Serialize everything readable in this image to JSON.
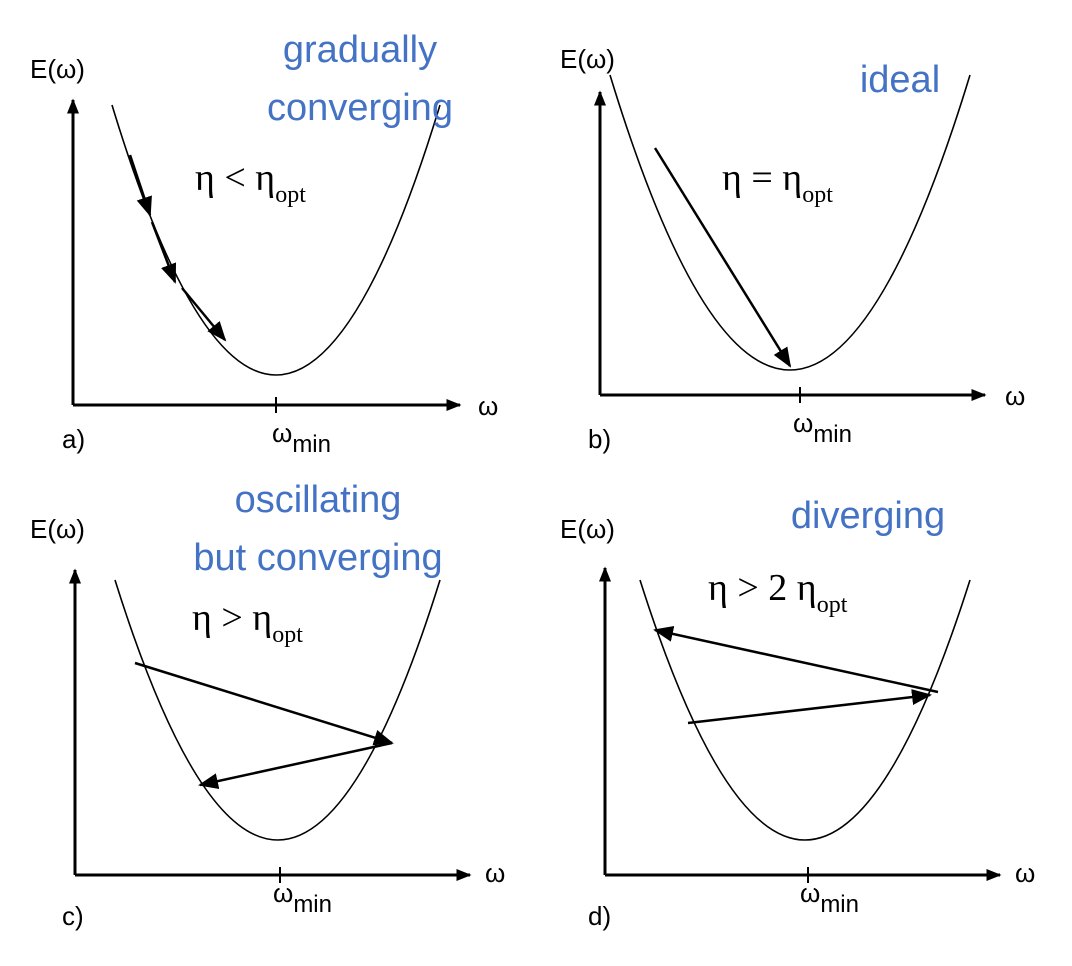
{
  "panels": [
    {
      "label": "a)",
      "y_axis": "E(ω)",
      "x_axis": "ω",
      "min_label": "ω",
      "min_sub": "min",
      "eta": "η < η",
      "eta_sub": "opt",
      "caption": [
        "gradually",
        "converging"
      ]
    },
    {
      "label": "b)",
      "y_axis": "E(ω)",
      "x_axis": "ω",
      "min_label": "ω",
      "min_sub": "min",
      "eta": "η = η",
      "eta_sub": "opt",
      "caption": [
        "ideal"
      ]
    },
    {
      "label": "c)",
      "y_axis": "E(ω)",
      "x_axis": "ω",
      "min_label": "ω",
      "min_sub": "min",
      "eta": "η > η",
      "eta_sub": "opt",
      "caption": [
        "oscillating",
        "but converging"
      ]
    },
    {
      "label": "d)",
      "y_axis": "E(ω)",
      "x_axis": "ω",
      "min_label": "ω",
      "min_sub": "min",
      "eta": "η > 2 η",
      "eta_sub": "opt",
      "caption": [
        "diverging"
      ]
    }
  ]
}
